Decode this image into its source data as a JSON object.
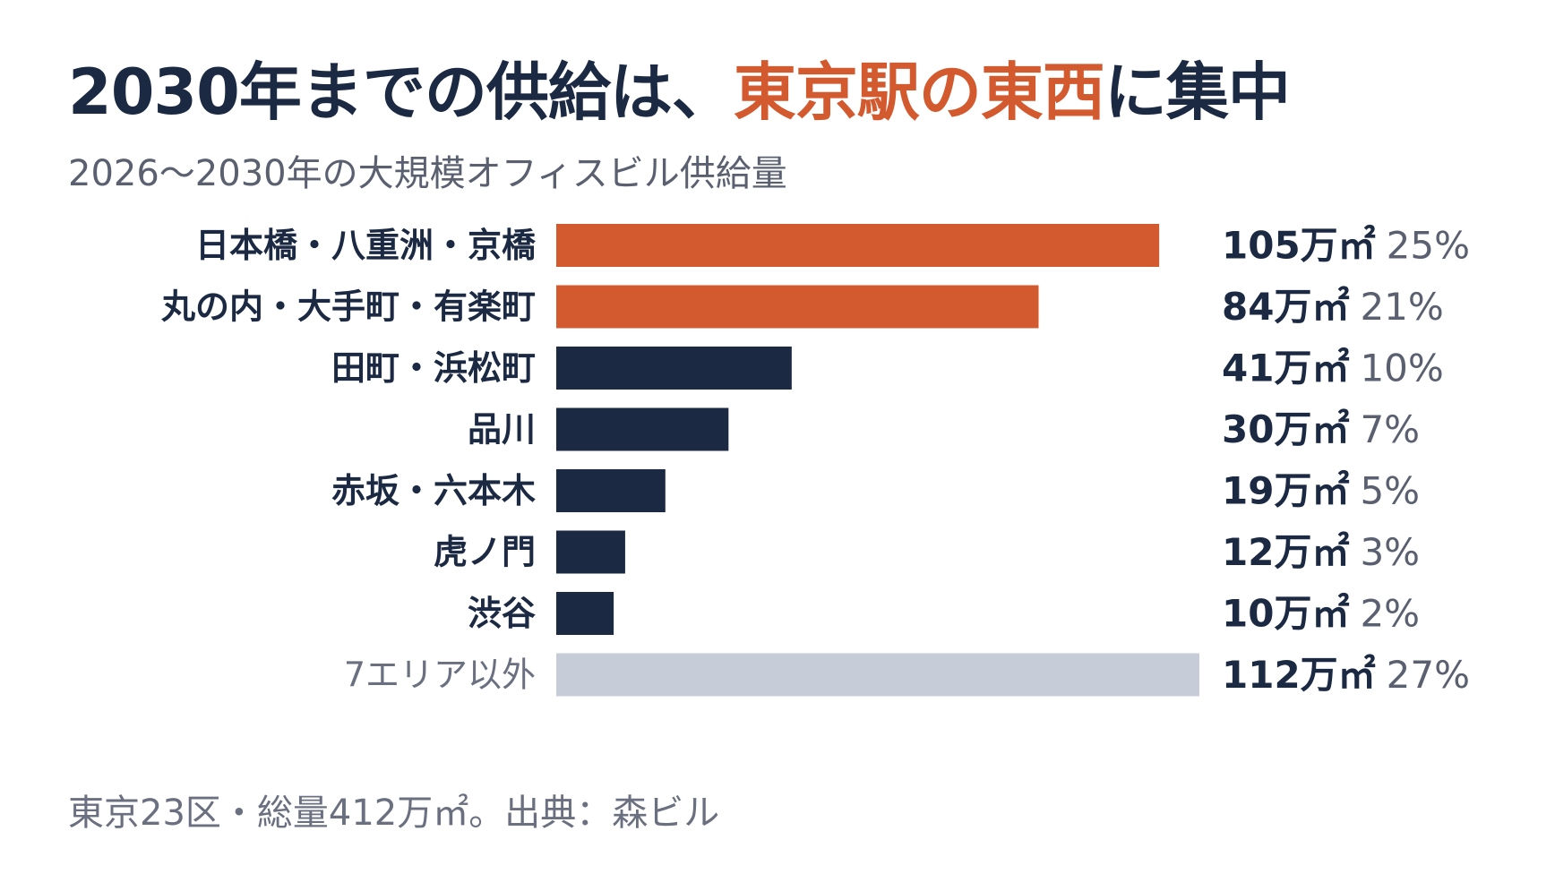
{
  "title": {
    "part1": "2030年までの供給は、",
    "highlight": "東京駅の東西",
    "part2": "に集中"
  },
  "colors": {
    "highlight": "#d35a2f",
    "navy": "#1c2942",
    "other": "#c6ccd8"
  },
  "chart_data": {
    "type": "bar",
    "orientation": "horizontal",
    "title": "2030年までの供給は、東京駅の東西に集中",
    "subtitle": "2026〜2030年の大規模オフィスビル供給量",
    "unit": "万㎡",
    "categories": [
      "日本橋・八重洲・京橋",
      "丸の内・大手町・有楽町",
      "田町・浜松町",
      "品川",
      "赤坂・六本木",
      "虎ノ門",
      "渋谷",
      "7エリア以外"
    ],
    "values": [
      105,
      84,
      41,
      30,
      19,
      12,
      10,
      112
    ],
    "value_labels": [
      "105万㎡",
      "84万㎡",
      "41万㎡",
      "30万㎡",
      "19万㎡",
      "12万㎡",
      "10万㎡",
      "112万㎡"
    ],
    "percent_labels": [
      "25%",
      "21%",
      "10%",
      "7%",
      "5%",
      "3%",
      "2%",
      "27%"
    ],
    "bar_colors": [
      "#d35a2f",
      "#d35a2f",
      "#1c2942",
      "#1c2942",
      "#1c2942",
      "#1c2942",
      "#1c2942",
      "#c6ccd8"
    ],
    "xlim": [
      0,
      112
    ]
  },
  "footer": "東京23区・総量412万㎡。出典：森ビル"
}
